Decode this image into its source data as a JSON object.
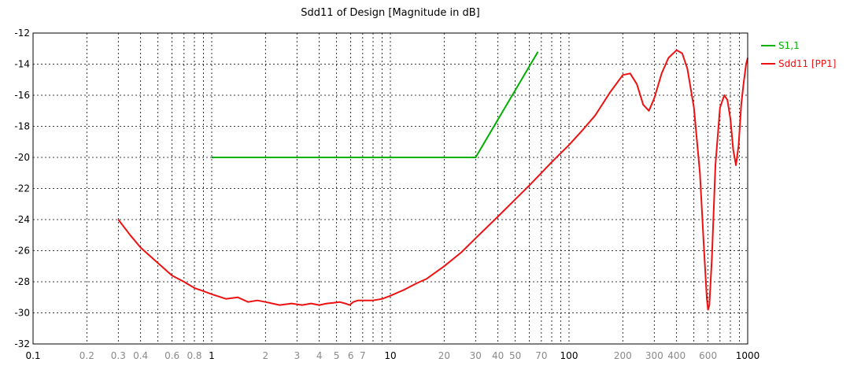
{
  "chart_data": {
    "type": "line",
    "title": "Sdd11 of Design [Magnitude in dB]",
    "x_scale": "log",
    "xlim": [
      0.1,
      1000
    ],
    "ylim": [
      -32,
      -12
    ],
    "grid": true,
    "legend_position": "right",
    "y_ticks": [
      "-12",
      "-14",
      "-16",
      "-18",
      "-20",
      "-22",
      "-24",
      "-26",
      "-28",
      "-30",
      "-32"
    ],
    "x_ticks": [
      {
        "v": 0.1,
        "label": "0.1",
        "major": true
      },
      {
        "v": 0.2,
        "label": "0.2",
        "major": false
      },
      {
        "v": 0.3,
        "label": "0.3",
        "major": false
      },
      {
        "v": 0.4,
        "label": "0.4",
        "major": false
      },
      {
        "v": 0.6,
        "label": "0.6",
        "major": false
      },
      {
        "v": 0.8,
        "label": "0.8",
        "major": false
      },
      {
        "v": 1,
        "label": "1",
        "major": true
      },
      {
        "v": 2,
        "label": "2",
        "major": false
      },
      {
        "v": 3,
        "label": "3",
        "major": false
      },
      {
        "v": 4,
        "label": "4",
        "major": false
      },
      {
        "v": 5,
        "label": "5",
        "major": false
      },
      {
        "v": 6,
        "label": "6",
        "major": false
      },
      {
        "v": 7,
        "label": "7",
        "major": false
      },
      {
        "v": 10,
        "label": "10",
        "major": true
      },
      {
        "v": 20,
        "label": "20",
        "major": false
      },
      {
        "v": 30,
        "label": "30",
        "major": false
      },
      {
        "v": 40,
        "label": "40",
        "major": false
      },
      {
        "v": 50,
        "label": "50",
        "major": false
      },
      {
        "v": 70,
        "label": "70",
        "major": false
      },
      {
        "v": 100,
        "label": "100",
        "major": true
      },
      {
        "v": 200,
        "label": "200",
        "major": false
      },
      {
        "v": 300,
        "label": "300",
        "major": false
      },
      {
        "v": 400,
        "label": "400",
        "major": false
      },
      {
        "v": 600,
        "label": "600",
        "major": false
      },
      {
        "v": 1000,
        "label": "1000",
        "major": true
      }
    ],
    "series": [
      {
        "name": "S1,1",
        "color": "#00b000",
        "x": [
          1,
          30,
          67
        ],
        "y": [
          -20,
          -20,
          -13.2
        ]
      },
      {
        "name": "Sdd11 [PP1]",
        "color": "#ee1111",
        "x": [
          0.3,
          0.35,
          0.4,
          0.5,
          0.6,
          0.7,
          0.8,
          0.9,
          1,
          1.2,
          1.4,
          1.6,
          1.8,
          2,
          2.4,
          2.8,
          3.2,
          3.6,
          4,
          4.4,
          4.8,
          5.2,
          5.6,
          5.9,
          6.2,
          6.6,
          7,
          8,
          9,
          10,
          12,
          14,
          16,
          20,
          25,
          30,
          40,
          50,
          60,
          70,
          80,
          100,
          120,
          140,
          170,
          200,
          220,
          240,
          260,
          280,
          300,
          330,
          360,
          400,
          430,
          460,
          500,
          540,
          570,
          590,
          600,
          610,
          630,
          660,
          700,
          740,
          770,
          800,
          830,
          860,
          890,
          920,
          950,
          980,
          1000
        ],
        "y": [
          -24.0,
          -25.0,
          -25.8,
          -26.8,
          -27.6,
          -28.0,
          -28.4,
          -28.6,
          -28.8,
          -29.1,
          -29.0,
          -29.3,
          -29.2,
          -29.3,
          -29.5,
          -29.4,
          -29.5,
          -29.4,
          -29.5,
          -29.4,
          -29.35,
          -29.3,
          -29.4,
          -29.5,
          -29.3,
          -29.2,
          -29.2,
          -29.2,
          -29.1,
          -28.9,
          -28.5,
          -28.1,
          -27.8,
          -27.0,
          -26.1,
          -25.2,
          -23.8,
          -22.7,
          -21.8,
          -21.0,
          -20.3,
          -19.2,
          -18.2,
          -17.3,
          -15.8,
          -14.7,
          -14.6,
          -15.3,
          -16.6,
          -17.0,
          -16.2,
          -14.6,
          -13.6,
          -13.1,
          -13.3,
          -14.3,
          -16.8,
          -21.0,
          -26.0,
          -29.0,
          -29.8,
          -29.5,
          -26.5,
          -20.5,
          -16.8,
          -16.0,
          -16.3,
          -17.5,
          -19.5,
          -20.5,
          -19.2,
          -16.6,
          -15.2,
          -14.0,
          -13.6
        ]
      }
    ]
  }
}
